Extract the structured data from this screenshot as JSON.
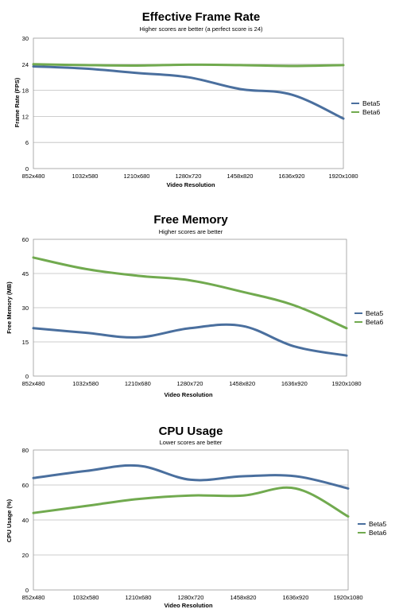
{
  "chart_data": [
    {
      "type": "line",
      "title": "Effective Frame Rate",
      "subtitle": "Higher scores are better (a perfect score is 24)",
      "xlabel": "Video Resolution",
      "ylabel": "Frame Rate (FPS)",
      "categories": [
        "852x480",
        "1032x580",
        "1210x680",
        "1280x720",
        "1458x820",
        "1636x920",
        "1920x1080"
      ],
      "ylim": [
        0,
        30
      ],
      "yticks": [
        0,
        6,
        12,
        18,
        24,
        30
      ],
      "grid": true,
      "legend": "right",
      "series": [
        {
          "name": "Beta5",
          "color": "#4a6f9e",
          "values": [
            23.5,
            23.0,
            22.0,
            21.0,
            18.3,
            17.0,
            11.5
          ]
        },
        {
          "name": "Beta6",
          "color": "#71aa4f",
          "values": [
            24.0,
            23.8,
            23.7,
            23.9,
            23.8,
            23.6,
            23.8
          ]
        }
      ]
    },
    {
      "type": "line",
      "title": "Free Memory",
      "subtitle": "Higher scores are better",
      "xlabel": "Video Resolution",
      "ylabel": "Free Memory (MB)",
      "categories": [
        "852x480",
        "1032x580",
        "1210x680",
        "1280x720",
        "1458x820",
        "1636x920",
        "1920x1080"
      ],
      "ylim": [
        0,
        60
      ],
      "yticks": [
        0,
        15,
        30,
        45,
        60
      ],
      "grid": true,
      "legend": "right",
      "series": [
        {
          "name": "Beta5",
          "color": "#4a6f9e",
          "values": [
            21,
            19,
            17,
            21,
            22,
            13,
            9
          ]
        },
        {
          "name": "Beta6",
          "color": "#71aa4f",
          "values": [
            52,
            47,
            44,
            42,
            37,
            31,
            21
          ]
        }
      ]
    },
    {
      "type": "line",
      "title": "CPU Usage",
      "subtitle": "Lower scores are better",
      "xlabel": "Video Resolution",
      "ylabel": "CPU Usage (%)",
      "categories": [
        "852x480",
        "1032x580",
        "1210x680",
        "1280x720",
        "1458x820",
        "1636x920",
        "1920x1080"
      ],
      "ylim": [
        0,
        80
      ],
      "yticks": [
        0,
        20,
        40,
        60,
        80
      ],
      "grid": true,
      "legend": "right",
      "series": [
        {
          "name": "Beta5",
          "color": "#4a6f9e",
          "values": [
            64,
            68,
            71,
            63,
            65,
            65,
            58
          ]
        },
        {
          "name": "Beta6",
          "color": "#71aa4f",
          "values": [
            44,
            48,
            52,
            54,
            54,
            58,
            42
          ]
        }
      ]
    }
  ]
}
